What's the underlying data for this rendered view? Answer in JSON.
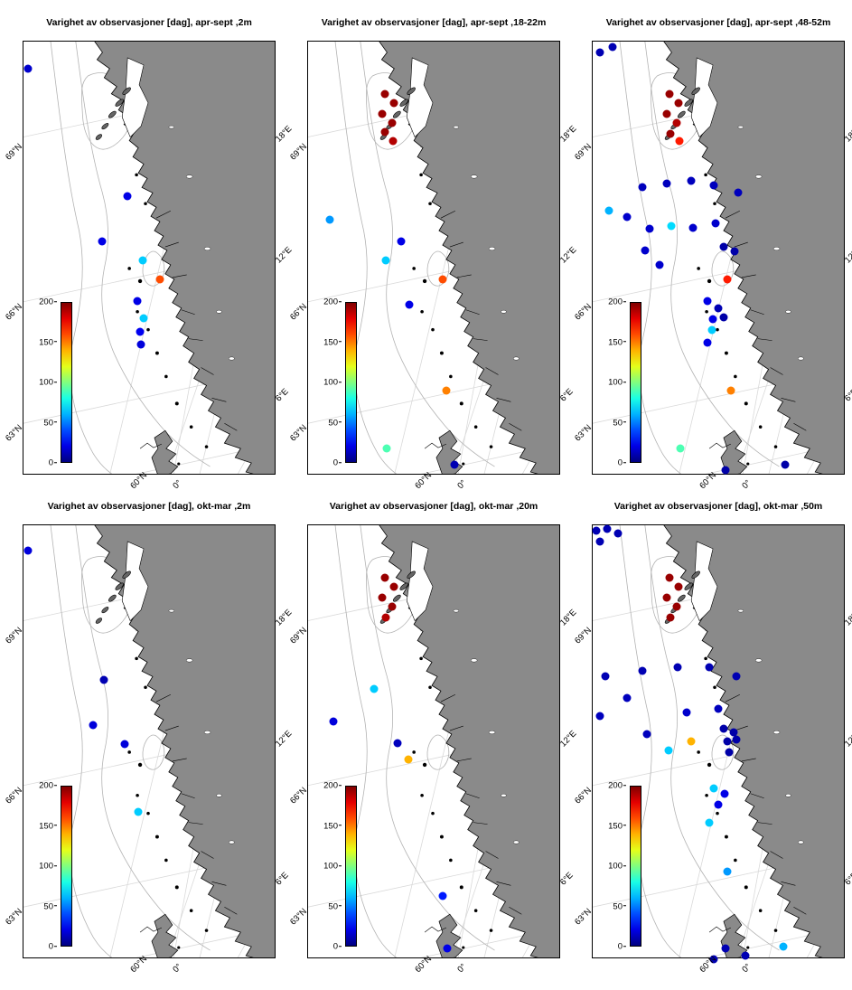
{
  "chart_data": {
    "type": "scatter",
    "units": "dag",
    "point_format": [
      "x_px_of_280",
      "y_px_of_480",
      "value_days"
    ],
    "colorbar": {
      "min": 0,
      "max": 200,
      "ticks": [
        "200",
        "150",
        "100",
        "50",
        "0"
      ]
    },
    "axes": {
      "left": [
        {
          "label": "69°N",
          "y": 23
        },
        {
          "label": "66°N",
          "y": 60
        },
        {
          "label": "63°N",
          "y": 88
        }
      ],
      "right": [
        {
          "label": "18°E",
          "y": 22
        },
        {
          "label": "12°E",
          "y": 50
        },
        {
          "label": "6°E",
          "y": 82
        }
      ],
      "bottom": [
        {
          "label": "60°N",
          "x": 42
        },
        {
          "label": "0°",
          "x": 59
        }
      ]
    },
    "panels": [
      {
        "title": "Varighet av observasjoner [dag], apr-sept ,2m",
        "points": [
          [
            5,
            30,
            15
          ],
          [
            116,
            172,
            20
          ],
          [
            88,
            222,
            20
          ],
          [
            133,
            243,
            65
          ],
          [
            152,
            264,
            160
          ],
          [
            127,
            288,
            20
          ],
          [
            134,
            307,
            65
          ],
          [
            130,
            322,
            22
          ],
          [
            131,
            336,
            18
          ]
        ]
      },
      {
        "title": "Varighet av observasjoner [dag], apr-sept ,18-22m",
        "points": [
          [
            86,
            58,
            195
          ],
          [
            96,
            68,
            195
          ],
          [
            83,
            80,
            195
          ],
          [
            94,
            90,
            195
          ],
          [
            86,
            100,
            195
          ],
          [
            95,
            110,
            190
          ],
          [
            24,
            198,
            55
          ],
          [
            104,
            222,
            20
          ],
          [
            87,
            243,
            65
          ],
          [
            150,
            264,
            160
          ],
          [
            113,
            292,
            20
          ],
          [
            154,
            388,
            150
          ],
          [
            88,
            452,
            90
          ],
          [
            163,
            470,
            10
          ]
        ]
      },
      {
        "title": "Varighet av observasjoner [dag], apr-sept ,48-52m",
        "points": [
          [
            8,
            12,
            10
          ],
          [
            22,
            6,
            10
          ],
          [
            86,
            58,
            195
          ],
          [
            96,
            68,
            195
          ],
          [
            83,
            80,
            195
          ],
          [
            94,
            90,
            190
          ],
          [
            87,
            102,
            195
          ],
          [
            97,
            110,
            170
          ],
          [
            55,
            162,
            12
          ],
          [
            83,
            158,
            12
          ],
          [
            110,
            155,
            12
          ],
          [
            135,
            160,
            12
          ],
          [
            162,
            168,
            12
          ],
          [
            18,
            188,
            60
          ],
          [
            38,
            195,
            15
          ],
          [
            63,
            208,
            15
          ],
          [
            88,
            205,
            68
          ],
          [
            112,
            207,
            15
          ],
          [
            137,
            202,
            15
          ],
          [
            58,
            232,
            15
          ],
          [
            75,
            248,
            15
          ],
          [
            146,
            228,
            8
          ],
          [
            158,
            233,
            8
          ],
          [
            150,
            264,
            170
          ],
          [
            128,
            288,
            20
          ],
          [
            140,
            296,
            10
          ],
          [
            134,
            308,
            20
          ],
          [
            146,
            306,
            8
          ],
          [
            133,
            320,
            65
          ],
          [
            128,
            334,
            20
          ],
          [
            154,
            388,
            150
          ],
          [
            98,
            452,
            90
          ],
          [
            148,
            476,
            8
          ],
          [
            215,
            470,
            8
          ]
        ]
      },
      {
        "title": "Varighet av observasjoner [dag], okt-mar ,2m",
        "points": [
          [
            5,
            28,
            18
          ],
          [
            90,
            172,
            10
          ],
          [
            78,
            222,
            18
          ],
          [
            113,
            243,
            18
          ],
          [
            128,
            318,
            65
          ]
        ]
      },
      {
        "title": "Varighet av observasjoner [dag], okt-mar ,20m",
        "points": [
          [
            86,
            58,
            195
          ],
          [
            96,
            68,
            195
          ],
          [
            83,
            80,
            195
          ],
          [
            94,
            90,
            195
          ],
          [
            87,
            102,
            190
          ],
          [
            74,
            182,
            65
          ],
          [
            28,
            218,
            18
          ],
          [
            100,
            242,
            12
          ],
          [
            112,
            260,
            140
          ],
          [
            150,
            412,
            30
          ],
          [
            155,
            470,
            20
          ]
        ]
      },
      {
        "title": "Varighet av observasjoner [dag], okt-mar ,50m",
        "points": [
          [
            4,
            6,
            10
          ],
          [
            16,
            4,
            10
          ],
          [
            28,
            9,
            10
          ],
          [
            8,
            18,
            10
          ],
          [
            86,
            58,
            195
          ],
          [
            96,
            68,
            195
          ],
          [
            83,
            80,
            195
          ],
          [
            94,
            90,
            195
          ],
          [
            87,
            102,
            195
          ],
          [
            14,
            168,
            10
          ],
          [
            55,
            162,
            10
          ],
          [
            95,
            158,
            10
          ],
          [
            130,
            158,
            10
          ],
          [
            160,
            168,
            10
          ],
          [
            8,
            212,
            12
          ],
          [
            38,
            192,
            12
          ],
          [
            105,
            208,
            15
          ],
          [
            140,
            204,
            12
          ],
          [
            60,
            232,
            12
          ],
          [
            110,
            240,
            140
          ],
          [
            85,
            250,
            65
          ],
          [
            146,
            226,
            8
          ],
          [
            157,
            230,
            8
          ],
          [
            150,
            240,
            8
          ],
          [
            160,
            238,
            8
          ],
          [
            152,
            252,
            8
          ],
          [
            135,
            292,
            65
          ],
          [
            147,
            298,
            20
          ],
          [
            140,
            310,
            20
          ],
          [
            130,
            330,
            65
          ],
          [
            150,
            385,
            55
          ],
          [
            148,
            470,
            10
          ],
          [
            170,
            478,
            10
          ],
          [
            213,
            468,
            60
          ],
          [
            135,
            482,
            10
          ]
        ]
      }
    ]
  }
}
